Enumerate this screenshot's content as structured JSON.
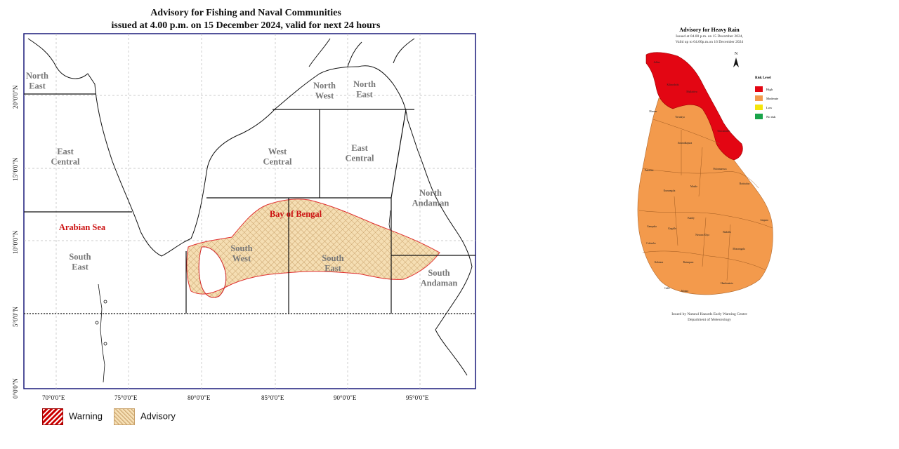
{
  "fishing_map": {
    "title_line1": "Advisory for Fishing and Naval Communities",
    "title_line2": "issued at 4.00 p.m. on 15  December  2024, valid for next 24 hours",
    "lat_labels": [
      "20°0'0\"N",
      "15°0'0\"N",
      "10°0'0\"N",
      "5°0'0\"N",
      "0°0'0\"N"
    ],
    "lon_labels": [
      "70°0'0\"E",
      "75°0'0\"E",
      "80°0'0\"E",
      "85°0'0\"E",
      "90°0'0\"E",
      "95°0'0\"E"
    ],
    "regions": {
      "arabian_north_east": "North\nEast",
      "arabian_east_central": "East\nCentral",
      "arabian_sea": "Arabian Sea",
      "arabian_south_east": "South\nEast",
      "bay_north_west": "North\nWest",
      "bay_north_east": "North\nEast",
      "bay_west_central": "West\nCentral",
      "bay_east_central": "East\nCentral",
      "bay_of_bengal": "Bay of Bengal",
      "bay_south_west": "South\nWest",
      "bay_south_east": "South\nEast",
      "north_andaman": "North\nAndaman",
      "south_andaman": "South\nAndaman"
    },
    "legend": {
      "warning": "Warning",
      "advisory": "Advisory"
    },
    "colors": {
      "frame": "#1a1a7a",
      "warning": "#cc0000",
      "advisory_fill": "#f5deb3",
      "advisory_hatch": "#c9a26b",
      "advisory_border": "#e03030",
      "region_label": "#777777",
      "sea_label": "#cc1111"
    }
  },
  "rain_map": {
    "title": "Advisory for Heavy Rain",
    "issued": "Issued at 04.00 p.m. on 15 December 2024,",
    "valid": "Valid up to 04.00p.m.on 16 December 2024",
    "north_arrow": "N",
    "risk_level_title": "Risk Level",
    "risk_levels": [
      {
        "label": "High",
        "color": "#e30613"
      },
      {
        "label": "Moderate",
        "color": "#f39a4c"
      },
      {
        "label": "Low",
        "color": "#f5e50a"
      },
      {
        "label": "No risk",
        "color": "#1aa44a"
      }
    ],
    "districts": [
      "Jaffna",
      "Kilinochchi",
      "Mullaitivu",
      "Mannar",
      "Vavuniya",
      "Trincomalee",
      "Anuradhapura",
      "Polonnaruwa",
      "Puttalam",
      "Kurunegala",
      "Matale",
      "Batticaloa",
      "Kandy",
      "Ampara",
      "Gampaha",
      "Kegalle",
      "Nuwara Eliya",
      "Badulla",
      "Colombo",
      "Monaragala",
      "Kalutara",
      "Ratnapura",
      "Galle",
      "Matara",
      "Hambantota"
    ],
    "footer_line1": "Issued by Natural Hazards Early Warning Centre",
    "footer_line2": "Department of Meteorology"
  }
}
